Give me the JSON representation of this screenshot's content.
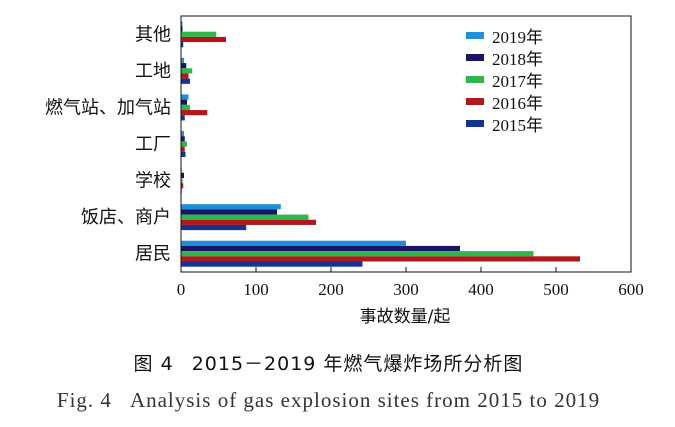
{
  "chart_data": {
    "type": "bar",
    "orientation": "horizontal",
    "categories": [
      "其他",
      "工地",
      "燃气站、加气站",
      "工厂",
      "学校",
      "饭店、商户",
      "居民"
    ],
    "series": [
      {
        "name": "2019年",
        "color": "#1e90d6",
        "values": [
          2,
          4,
          10,
          4,
          1,
          133,
          300
        ]
      },
      {
        "name": "2018年",
        "color": "#1a1464",
        "values": [
          2,
          7,
          8,
          5,
          4,
          128,
          372
        ]
      },
      {
        "name": "2017年",
        "color": "#2db84b",
        "values": [
          47,
          15,
          12,
          8,
          2,
          170,
          470
        ]
      },
      {
        "name": "2016年",
        "color": "#b0181e",
        "values": [
          60,
          10,
          35,
          5,
          3,
          180,
          532
        ]
      },
      {
        "name": "2015年",
        "color": "#13348f",
        "values": [
          3,
          12,
          5,
          6,
          1,
          87,
          242
        ]
      }
    ],
    "xlabel": "事故数量/起",
    "xlim": [
      0,
      600
    ],
    "xticks": [
      0,
      100,
      200,
      300,
      400,
      500,
      600
    ],
    "grid": false,
    "legend": "top-right"
  },
  "caption": {
    "zh_label": "图 4",
    "zh_text": "2015－2019 年燃气爆炸场所分析图",
    "en_label": "Fig. 4",
    "en_text": "Analysis of gas explosion sites from 2015 to 2019"
  }
}
